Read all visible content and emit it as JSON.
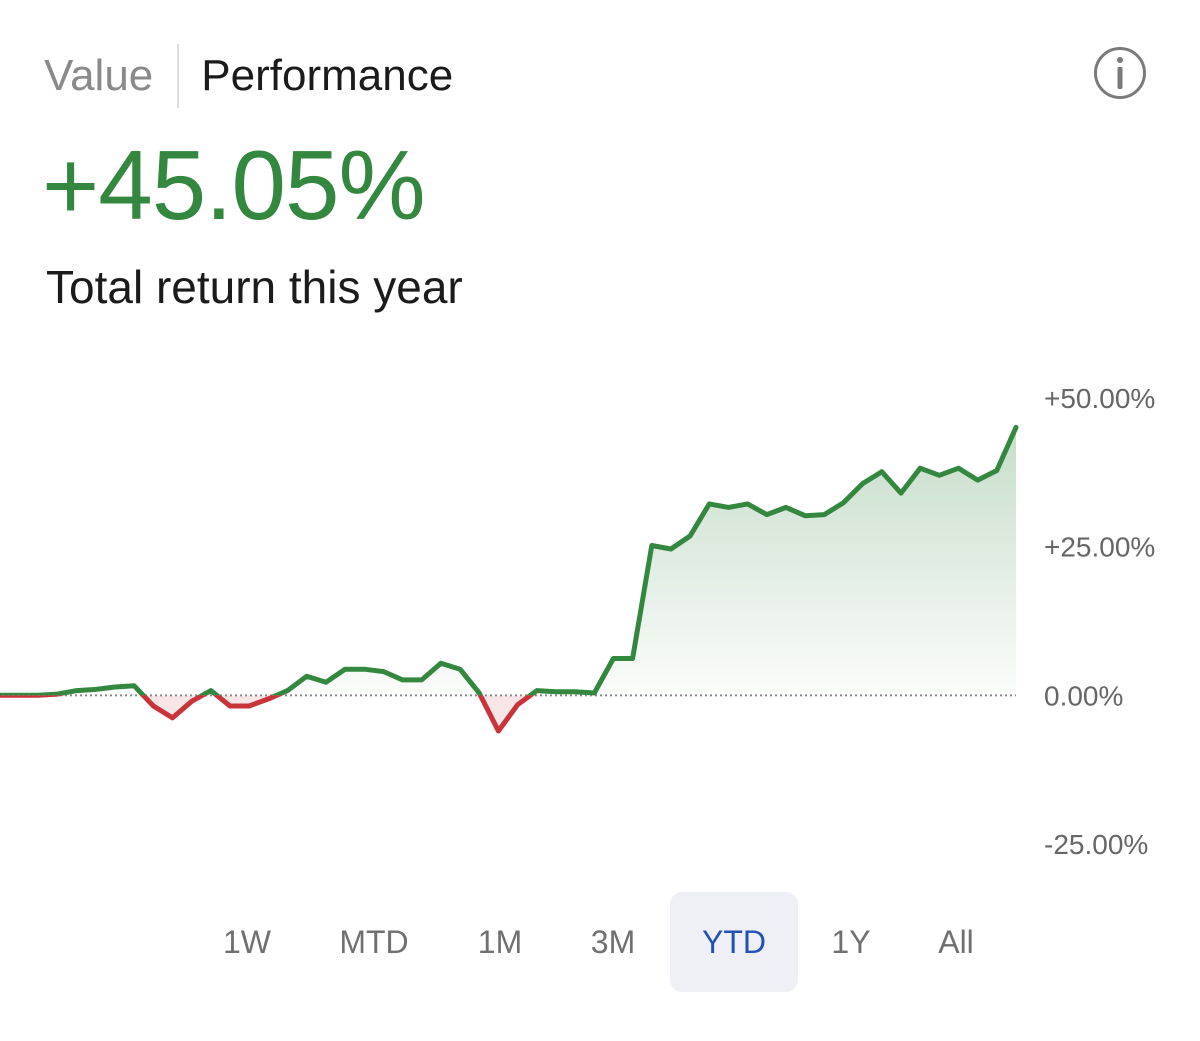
{
  "tabs": {
    "value_label": "Value",
    "performance_label": "Performance",
    "active": "Performance"
  },
  "info_icon": "info-circle-icon",
  "summary": {
    "return_value": "+45.05%",
    "return_label": "Total return this year"
  },
  "colors": {
    "positive": "#34873f",
    "negative": "#c9333a",
    "active_range": "#2151b8"
  },
  "chart_data": {
    "type": "line",
    "title": "",
    "xlabel": "",
    "ylabel": "",
    "ylim": [
      -25,
      50
    ],
    "y_ticks": [
      "+50.00%",
      "+25.00%",
      "0.00%",
      "-25.00%"
    ],
    "y_tick_values": [
      50,
      25,
      0,
      -25
    ],
    "baseline": 0,
    "baseline_style": "dotted",
    "area_fill": "positive values only, gradient",
    "grid": false,
    "legend": "none",
    "series": [
      {
        "values": [
          0.0,
          0.0,
          0.0,
          0.2,
          0.8,
          1.0,
          1.4,
          1.6,
          -1.8,
          -3.8,
          -1.0,
          0.8,
          -1.8,
          -1.8,
          -0.6,
          0.8,
          3.2,
          2.2,
          4.4,
          4.4,
          4.0,
          2.6,
          2.6,
          5.4,
          4.4,
          0.4,
          -6.0,
          -1.6,
          0.8,
          0.6,
          0.6,
          0.4,
          6.2,
          6.2,
          25.2,
          24.6,
          26.8,
          32.2,
          31.6,
          32.2,
          30.4,
          31.6,
          30.2,
          30.4,
          32.4,
          35.6,
          37.6,
          34.0,
          38.2,
          37.0,
          38.2,
          36.2,
          37.8,
          45.05
        ]
      }
    ]
  },
  "ranges": {
    "items": [
      "1W",
      "MTD",
      "1M",
      "3M",
      "YTD",
      "1Y",
      "All"
    ],
    "active": "YTD"
  }
}
